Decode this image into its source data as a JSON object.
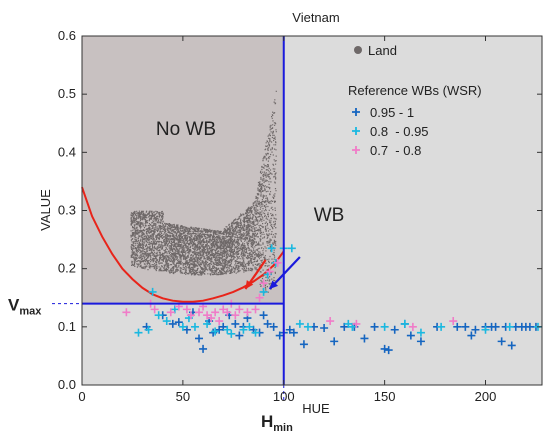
{
  "chart_data": {
    "type": "scatter",
    "title": "Vietnam",
    "xlabel": "HUE",
    "ylabel": "VALUE",
    "xlim": [
      0,
      228
    ],
    "ylim": [
      0,
      0.6
    ],
    "xticks": [
      "0",
      "50",
      "100",
      "150",
      "200"
    ],
    "yticks": [
      "0.0",
      "0.1",
      "0.2",
      "0.3",
      "0.4",
      "0.5",
      "0.6"
    ],
    "grid": false,
    "legend_placement": "top-right",
    "legend": {
      "land_label": "Land",
      "ref_title": "Reference WBs (WSR)",
      "entries": [
        {
          "label": "0.95 - 1",
          "color": "#1565c0"
        },
        {
          "label": "0.8  - 0.95",
          "color": "#1ab8e0"
        },
        {
          "label": "0.7  - 0.8",
          "color": "#f07cc8"
        }
      ]
    },
    "region_labels": {
      "no_wb": "No WB",
      "wb": "WB"
    },
    "thresholds": {
      "vmax_label": "V",
      "vmax_sub": "max",
      "vmax_value": 0.14,
      "hmin_label": "H",
      "hmin_sub": "min",
      "hmin_value": 100
    },
    "colors": {
      "no_wb_region": "#c8c1c1",
      "wb_region": "#dcdcdc",
      "land_points": "#6e6868",
      "boundary_curve": "#e8241a",
      "threshold_lines": "#1a1adc"
    },
    "boundary_curve": {
      "x": [
        0,
        5,
        10,
        15,
        20,
        25,
        30,
        35,
        40,
        45,
        50,
        55,
        60,
        65,
        70,
        75,
        80,
        85,
        90,
        95,
        100
      ],
      "y": [
        0.34,
        0.29,
        0.255,
        0.225,
        0.2,
        0.182,
        0.167,
        0.156,
        0.149,
        0.145,
        0.143,
        0.143,
        0.145,
        0.149,
        0.154,
        0.16,
        0.168,
        0.178,
        0.19,
        0.206,
        0.23
      ]
    },
    "land_cloud": {
      "approx_x_range": [
        23,
        97
      ],
      "approx_y_range": [
        0.15,
        0.51
      ]
    },
    "series": [
      {
        "name": "0.95 - 1",
        "color": "#1565c0",
        "points": [
          [
            32,
            0.1
          ],
          [
            40,
            0.12
          ],
          [
            45,
            0.105
          ],
          [
            48,
            0.108
          ],
          [
            52,
            0.095
          ],
          [
            55,
            0.125
          ],
          [
            58,
            0.08
          ],
          [
            60,
            0.062
          ],
          [
            63,
            0.11
          ],
          [
            65,
            0.09
          ],
          [
            68,
            0.095
          ],
          [
            70,
            0.1
          ],
          [
            73,
            0.12
          ],
          [
            76,
            0.105
          ],
          [
            78,
            0.085
          ],
          [
            80,
            0.1
          ],
          [
            82,
            0.115
          ],
          [
            85,
            0.095
          ],
          [
            88,
            0.09
          ],
          [
            90,
            0.12
          ],
          [
            92,
            0.105
          ],
          [
            95,
            0.1
          ],
          [
            98,
            0.085
          ],
          [
            100,
            0.09
          ],
          [
            103,
            0.095
          ],
          [
            105,
            0.09
          ],
          [
            110,
            0.07
          ],
          [
            115,
            0.1
          ],
          [
            120,
            0.098
          ],
          [
            125,
            0.075
          ],
          [
            130,
            0.1
          ],
          [
            135,
            0.1
          ],
          [
            140,
            0.08
          ],
          [
            145,
            0.1
          ],
          [
            150,
            0.062
          ],
          [
            152,
            0.06
          ],
          [
            155,
            0.095
          ],
          [
            160,
            0.105
          ],
          [
            163,
            0.085
          ],
          [
            168,
            0.075
          ],
          [
            176,
            0.1
          ],
          [
            186,
            0.1
          ],
          [
            190,
            0.1
          ],
          [
            193,
            0.085
          ],
          [
            195,
            0.095
          ],
          [
            200,
            0.1
          ],
          [
            203,
            0.1
          ],
          [
            205,
            0.1
          ],
          [
            208,
            0.075
          ],
          [
            210,
            0.1
          ],
          [
            213,
            0.068
          ],
          [
            215,
            0.1
          ],
          [
            218,
            0.1
          ],
          [
            220,
            0.1
          ],
          [
            222,
            0.1
          ],
          [
            225,
            0.1
          ]
        ]
      },
      {
        "name": "0.8  - 0.95",
        "color": "#1ab8e0",
        "points": [
          [
            28,
            0.09
          ],
          [
            33,
            0.095
          ],
          [
            35,
            0.16
          ],
          [
            38,
            0.12
          ],
          [
            42,
            0.11
          ],
          [
            46,
            0.13
          ],
          [
            50,
            0.1
          ],
          [
            53,
            0.115
          ],
          [
            56,
            0.1
          ],
          [
            62,
            0.105
          ],
          [
            66,
            0.092
          ],
          [
            72,
            0.095
          ],
          [
            74,
            0.088
          ],
          [
            80,
            0.095
          ],
          [
            83,
            0.1
          ],
          [
            86,
            0.09
          ],
          [
            90,
            0.16
          ],
          [
            92,
            0.19
          ],
          [
            94,
            0.235
          ],
          [
            96,
            0.21
          ],
          [
            100,
            0.235
          ],
          [
            104,
            0.235
          ],
          [
            108,
            0.105
          ],
          [
            112,
            0.1
          ],
          [
            132,
            0.105
          ],
          [
            134,
            0.1
          ],
          [
            150,
            0.1
          ],
          [
            160,
            0.105
          ],
          [
            168,
            0.09
          ],
          [
            178,
            0.1
          ],
          [
            200,
            0.095
          ],
          [
            212,
            0.1
          ],
          [
            226,
            0.1
          ]
        ]
      },
      {
        "name": "0.7  - 0.8",
        "color": "#f07cc8",
        "points": [
          [
            22,
            0.125
          ],
          [
            34,
            0.14
          ],
          [
            36,
            0.13
          ],
          [
            44,
            0.125
          ],
          [
            48,
            0.135
          ],
          [
            52,
            0.13
          ],
          [
            54,
            0.12
          ],
          [
            58,
            0.125
          ],
          [
            60,
            0.135
          ],
          [
            62,
            0.12
          ],
          [
            64,
            0.115
          ],
          [
            66,
            0.125
          ],
          [
            68,
            0.11
          ],
          [
            70,
            0.13
          ],
          [
            72,
            0.125
          ],
          [
            74,
            0.14
          ],
          [
            76,
            0.12
          ],
          [
            78,
            0.13
          ],
          [
            82,
            0.125
          ],
          [
            86,
            0.13
          ],
          [
            88,
            0.15
          ],
          [
            90,
            0.175
          ],
          [
            93,
            0.195
          ],
          [
            97,
            0.21
          ],
          [
            123,
            0.11
          ],
          [
            136,
            0.105
          ],
          [
            164,
            0.1
          ],
          [
            184,
            0.11
          ]
        ]
      }
    ]
  }
}
